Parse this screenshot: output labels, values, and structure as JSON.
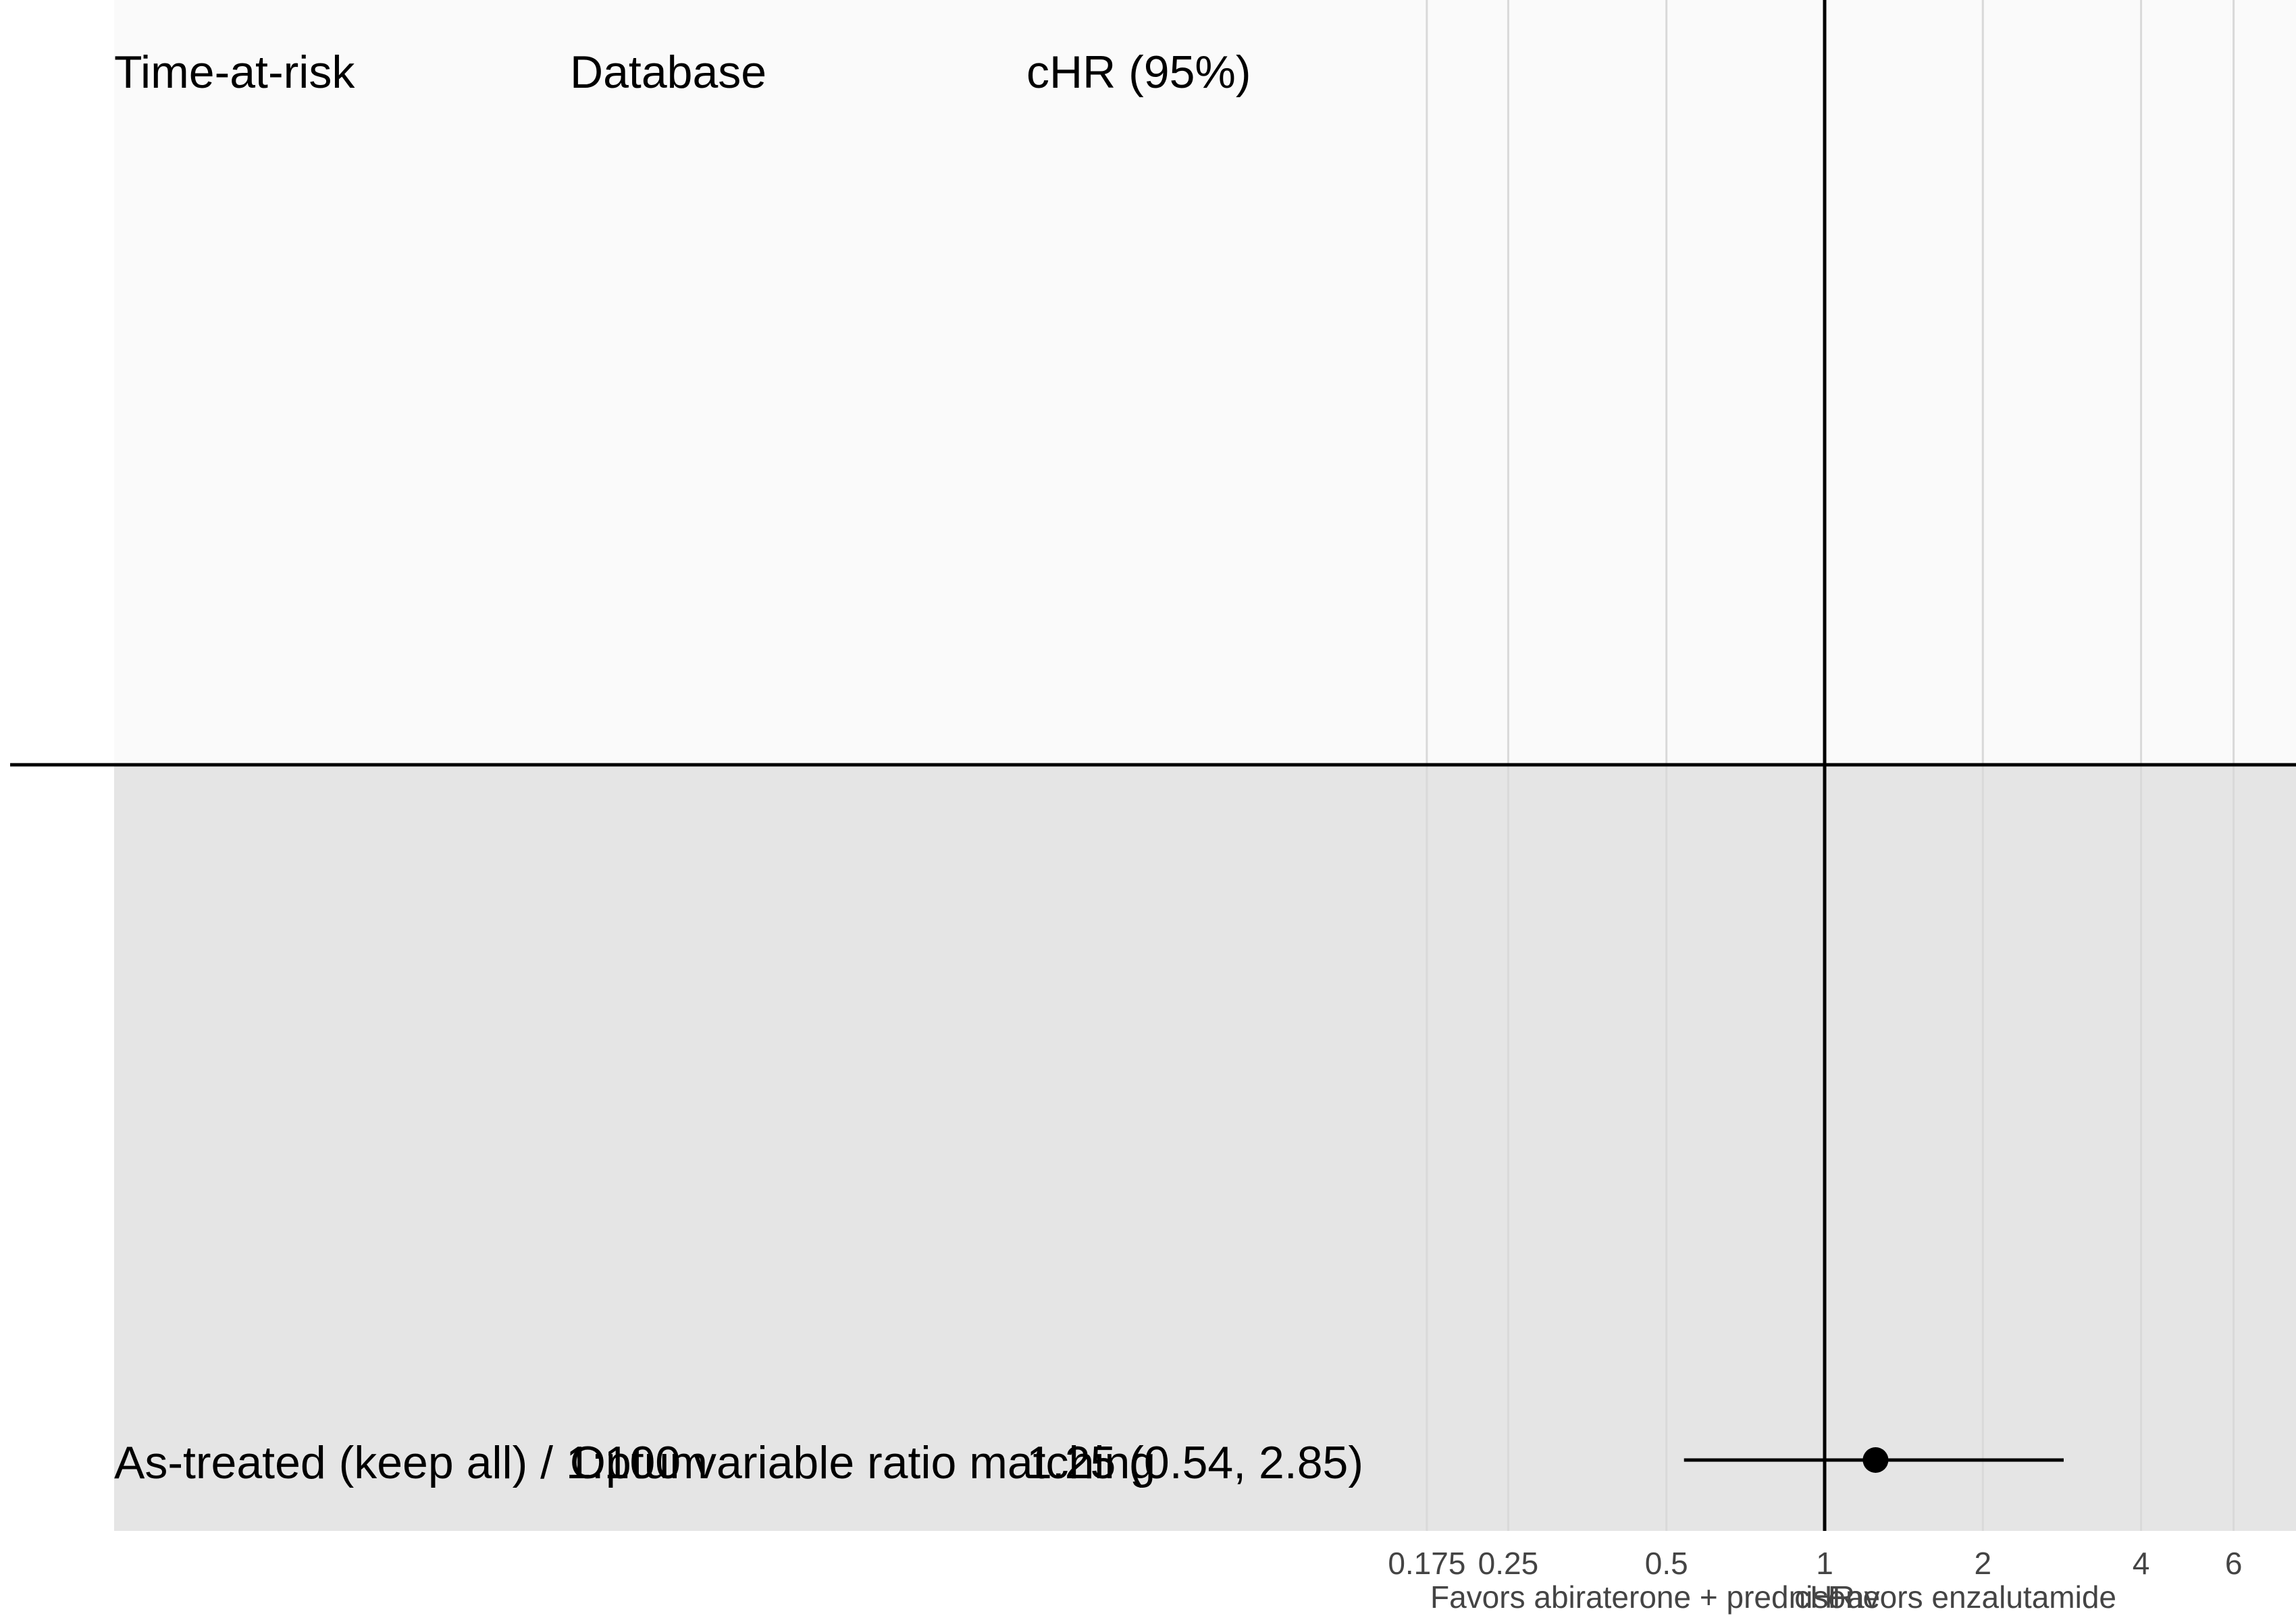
{
  "chart_data": {
    "type": "forest",
    "title": "",
    "xlabel": "cHR",
    "x_scale": "log",
    "xlim": [
      0.175,
      7.5
    ],
    "x_ticks": [
      0.175,
      0.25,
      0.5,
      1,
      2,
      4,
      6
    ],
    "x_tick_labels": [
      "0.175",
      "0.25",
      "0.5",
      "1",
      "2",
      "4",
      "6"
    ],
    "reference_line": 1,
    "direction_labels": {
      "left": "Favors abiraterone + prednisone",
      "right": "Favors enzalutamide"
    },
    "table_headers": [
      "Time-at-risk",
      "Database",
      "cHR (95%)"
    ],
    "rows": [
      {
        "time_at_risk": "As-treated (keep all) / 1:100 variable ratio matching",
        "database": "Optum",
        "estimate_text": "1.25 (0.54, 2.85)",
        "estimate": 1.25,
        "ci_lower": 0.54,
        "ci_upper": 2.85
      }
    ],
    "colors": {
      "header_band": "#fafafa",
      "row_band": "#e5e5e5",
      "gridline": "#d9d9d9",
      "line": "#000000",
      "tick_text": "#444444"
    }
  }
}
